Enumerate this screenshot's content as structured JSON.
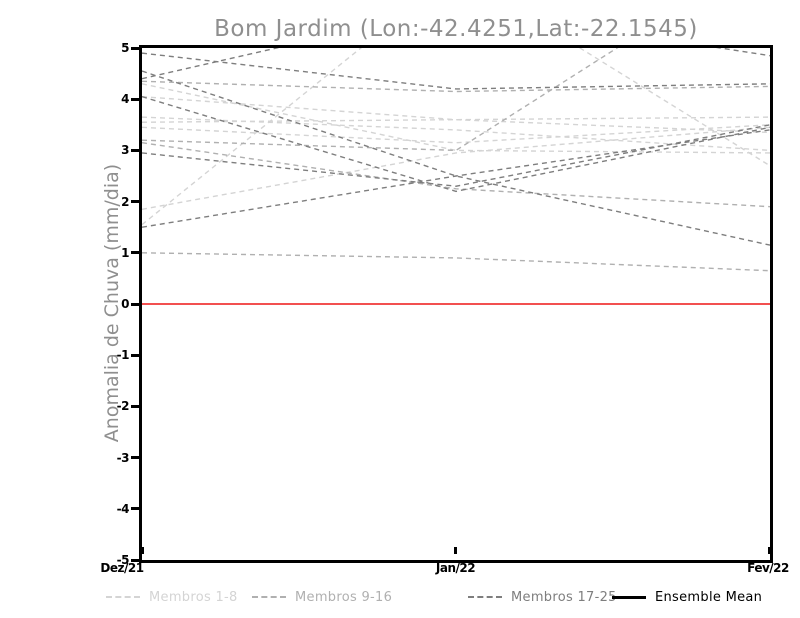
{
  "title": "Bom Jardim (Lon:-42.4251,Lat:-22.1545)",
  "chart_data": {
    "type": "line",
    "title": "Bom Jardim (Lon:-42.4251,Lat:-22.1545)",
    "ylabel": "Anomalia de Chuva (mm/dia)",
    "xlabel": "",
    "x_categories": [
      "Dez/21",
      "Jan/22",
      "Fev/22"
    ],
    "ylim": [
      -5,
      5
    ],
    "yticks": [
      "5",
      "4",
      "3",
      "2",
      "1",
      "0",
      "-1",
      "-2",
      "-3",
      "-4",
      "-5"
    ],
    "grid": "off",
    "legend_position": "bottom",
    "zero_line": {
      "value": 0,
      "color": "#f25050",
      "style": "solid"
    },
    "groups": [
      {
        "name": "Membros 1-8",
        "color": "#d4d4d4",
        "style": "dashed"
      },
      {
        "name": "Membros 9-16",
        "color": "#b0b0b0",
        "style": "dashed"
      },
      {
        "name": "Membros 17-25",
        "color": "#7e7e7e",
        "style": "dashed"
      },
      {
        "name": "Ensemble Mean",
        "color": "#000000",
        "style": "solid"
      }
    ],
    "series": [
      {
        "group": 0,
        "values": [
          4.3,
          3.0,
          2.95
        ]
      },
      {
        "group": 0,
        "values": [
          4.05,
          3.6,
          3.35
        ]
      },
      {
        "group": 0,
        "values": [
          3.65,
          3.4,
          3.0
        ]
      },
      {
        "group": 0,
        "values": [
          3.55,
          3.6,
          3.65
        ]
      },
      {
        "group": 0,
        "values": [
          3.45,
          3.15,
          3.5
        ]
      },
      {
        "group": 0,
        "values": [
          1.85,
          2.95,
          3.45
        ]
      },
      {
        "group": 0,
        "values": [
          1.55,
          6.5,
          2.7
        ]
      },
      {
        "group": 1,
        "values": [
          3.15,
          2.25,
          1.9
        ]
      },
      {
        "group": 1,
        "values": [
          1.0,
          0.9,
          0.65
        ]
      },
      {
        "group": 1,
        "values": [
          3.2,
          3.0,
          6.9
        ]
      },
      {
        "group": 1,
        "values": [
          4.35,
          4.15,
          4.25
        ]
      },
      {
        "group": 2,
        "values": [
          4.55,
          2.5,
          1.15
        ]
      },
      {
        "group": 2,
        "values": [
          4.4,
          5.8,
          4.85
        ]
      },
      {
        "group": 2,
        "values": [
          4.9,
          4.2,
          4.3
        ]
      },
      {
        "group": 2,
        "values": [
          2.95,
          2.3,
          3.5
        ]
      },
      {
        "group": 2,
        "values": [
          1.5,
          2.5,
          3.4
        ]
      },
      {
        "group": 2,
        "values": [
          4.05,
          2.2,
          3.45
        ]
      }
    ]
  }
}
